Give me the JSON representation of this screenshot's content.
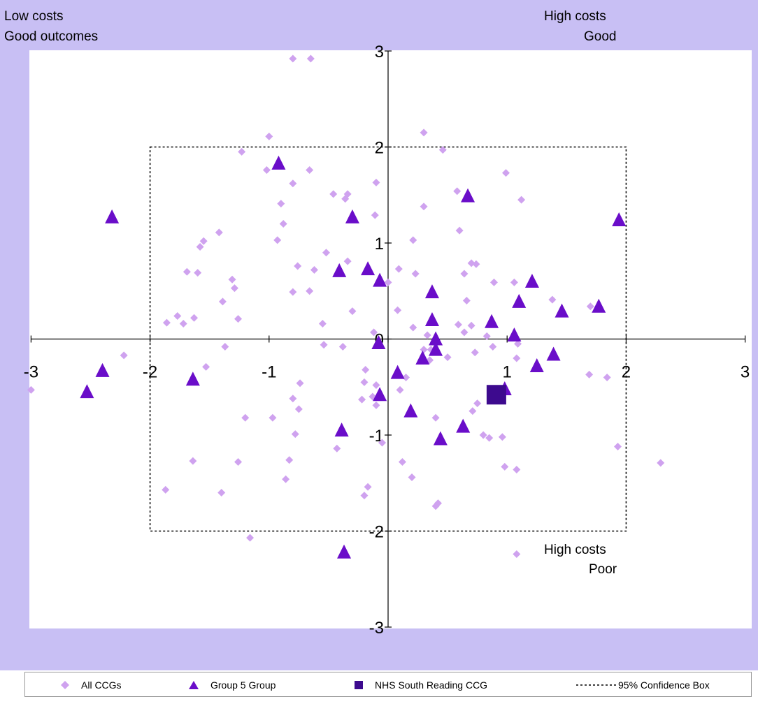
{
  "colors": {
    "background_band": "#c8bff4",
    "plot_bg": "#ffffff",
    "all_ccgs": "#cfa2ef",
    "group": "#6a0dc9",
    "highlight": "#3d0a8e",
    "axis": "#000000"
  },
  "corner_labels": {
    "top_left_1": "Low costs",
    "top_left_2": "Good outcomes",
    "top_right_1": "High costs",
    "top_right_2": "Good",
    "bottom_right_1": "High costs",
    "bottom_right_2": "Poor"
  },
  "legend": {
    "all": "All CCGs",
    "group": "Group 5 Group",
    "highlight": "NHS South Reading CCG",
    "box": "95% Confidence Box"
  },
  "chart_data": {
    "type": "scatter",
    "title": "",
    "xlabel": "",
    "ylabel": "",
    "xlim": [
      -3,
      3
    ],
    "ylim": [
      -3,
      3
    ],
    "x_ticks": [
      "-3",
      "-2",
      "-1",
      "0",
      "1",
      "2",
      "3"
    ],
    "y_ticks": [
      "-3",
      "-2",
      "-1",
      "0",
      "1",
      "2",
      "3"
    ],
    "confidence_box": {
      "x": [
        -2,
        2
      ],
      "y": [
        -2,
        2
      ]
    },
    "series": [
      {
        "name": "All CCGs",
        "marker": "diamond",
        "points": [
          [
            -0.8,
            2.92
          ],
          [
            -0.65,
            2.92
          ],
          [
            -1.0,
            2.11
          ],
          [
            0.3,
            2.15
          ],
          [
            0.46,
            1.97
          ],
          [
            -1.23,
            1.95
          ],
          [
            -1.02,
            1.76
          ],
          [
            -0.66,
            1.76
          ],
          [
            0.99,
            1.73
          ],
          [
            -0.1,
            1.63
          ],
          [
            0.58,
            1.54
          ],
          [
            -0.8,
            1.62
          ],
          [
            -0.46,
            1.51
          ],
          [
            -0.34,
            1.51
          ],
          [
            -0.36,
            1.46
          ],
          [
            1.12,
            1.45
          ],
          [
            -0.9,
            1.41
          ],
          [
            0.3,
            1.38
          ],
          [
            -0.11,
            1.29
          ],
          [
            -0.88,
            1.2
          ],
          [
            0.6,
            1.13
          ],
          [
            -1.42,
            1.11
          ],
          [
            -1.55,
            1.02
          ],
          [
            -0.93,
            1.03
          ],
          [
            0.21,
            1.03
          ],
          [
            -1.58,
            0.96
          ],
          [
            -0.52,
            0.9
          ],
          [
            -0.34,
            0.81
          ],
          [
            0.7,
            0.79
          ],
          [
            0.74,
            0.78
          ],
          [
            -0.76,
            0.76
          ],
          [
            -0.62,
            0.72
          ],
          [
            0.09,
            0.73
          ],
          [
            -1.69,
            0.7
          ],
          [
            -1.6,
            0.69
          ],
          [
            0.64,
            0.68
          ],
          [
            0.23,
            0.68
          ],
          [
            -1.31,
            0.62
          ],
          [
            0.89,
            0.59
          ],
          [
            1.06,
            0.59
          ],
          [
            -0.0,
            0.59
          ],
          [
            -1.29,
            0.53
          ],
          [
            -0.66,
            0.5
          ],
          [
            -0.8,
            0.49
          ],
          [
            1.38,
            0.41
          ],
          [
            0.66,
            0.4
          ],
          [
            -1.39,
            0.39
          ],
          [
            1.7,
            0.34
          ],
          [
            0.08,
            0.3
          ],
          [
            -0.3,
            0.29
          ],
          [
            -1.77,
            0.24
          ],
          [
            -1.63,
            0.22
          ],
          [
            -1.26,
            0.21
          ],
          [
            -1.86,
            0.17
          ],
          [
            -1.72,
            0.16
          ],
          [
            -0.55,
            0.16
          ],
          [
            0.59,
            0.15
          ],
          [
            0.7,
            0.14
          ],
          [
            0.21,
            0.12
          ],
          [
            0.64,
            0.07
          ],
          [
            -0.12,
            0.07
          ],
          [
            0.33,
            0.04
          ],
          [
            0.83,
            0.03
          ],
          [
            -0.54,
            -0.06
          ],
          [
            -1.37,
            -0.08
          ],
          [
            -0.38,
            -0.08
          ],
          [
            0.88,
            -0.08
          ],
          [
            0.3,
            -0.11
          ],
          [
            0.36,
            -0.11
          ],
          [
            0.73,
            -0.14
          ],
          [
            1.09,
            -0.05
          ],
          [
            -2.22,
            -0.17
          ],
          [
            0.5,
            -0.19
          ],
          [
            1.08,
            -0.2
          ],
          [
            0.35,
            -0.22
          ],
          [
            -1.53,
            -0.29
          ],
          [
            -0.19,
            -0.32
          ],
          [
            1.69,
            -0.37
          ],
          [
            1.84,
            -0.4
          ],
          [
            0.15,
            -0.4
          ],
          [
            -0.2,
            -0.45
          ],
          [
            -0.1,
            -0.48
          ],
          [
            -0.74,
            -0.46
          ],
          [
            0.1,
            -0.53
          ],
          [
            -3.0,
            -0.53
          ],
          [
            -0.22,
            -0.63
          ],
          [
            -0.8,
            -0.62
          ],
          [
            -0.13,
            -0.6
          ],
          [
            0.75,
            -0.67
          ],
          [
            -0.75,
            -0.73
          ],
          [
            0.71,
            -0.75
          ],
          [
            -0.1,
            -0.69
          ],
          [
            -0.97,
            -0.82
          ],
          [
            0.4,
            -0.82
          ],
          [
            -1.2,
            -0.82
          ],
          [
            -0.78,
            -0.99
          ],
          [
            0.8,
            -1.0
          ],
          [
            0.85,
            -1.03
          ],
          [
            0.96,
            -1.02
          ],
          [
            -0.05,
            -1.08
          ],
          [
            -0.43,
            -1.14
          ],
          [
            1.93,
            -1.12
          ],
          [
            0.12,
            -1.28
          ],
          [
            -1.64,
            -1.27
          ],
          [
            -1.26,
            -1.28
          ],
          [
            -0.83,
            -1.26
          ],
          [
            0.98,
            -1.33
          ],
          [
            1.08,
            -1.36
          ],
          [
            2.29,
            -1.29
          ],
          [
            0.2,
            -1.44
          ],
          [
            -0.86,
            -1.46
          ],
          [
            -0.17,
            -1.54
          ],
          [
            -1.87,
            -1.57
          ],
          [
            -1.4,
            -1.6
          ],
          [
            -0.2,
            -1.63
          ],
          [
            0.42,
            -1.71
          ],
          [
            0.4,
            -1.74
          ],
          [
            -1.16,
            -2.07
          ],
          [
            1.08,
            -2.24
          ]
        ]
      },
      {
        "name": "Group 5 Group",
        "marker": "triangle",
        "points": [
          [
            -0.92,
            1.83
          ],
          [
            0.67,
            1.49
          ],
          [
            -2.32,
            1.27
          ],
          [
            1.94,
            1.24
          ],
          [
            -0.3,
            1.27
          ],
          [
            -0.17,
            0.73
          ],
          [
            -0.41,
            0.71
          ],
          [
            -0.07,
            0.61
          ],
          [
            1.21,
            0.6
          ],
          [
            0.37,
            0.49
          ],
          [
            1.1,
            0.39
          ],
          [
            1.77,
            0.34
          ],
          [
            1.46,
            0.29
          ],
          [
            0.37,
            0.2
          ],
          [
            0.87,
            0.18
          ],
          [
            1.06,
            0.04
          ],
          [
            0.4,
            0.0
          ],
          [
            -0.08,
            -0.04
          ],
          [
            0.4,
            -0.11
          ],
          [
            1.39,
            -0.16
          ],
          [
            0.29,
            -0.2
          ],
          [
            1.25,
            -0.28
          ],
          [
            -2.4,
            -0.33
          ],
          [
            0.08,
            -0.35
          ],
          [
            -1.64,
            -0.42
          ],
          [
            0.98,
            -0.52
          ],
          [
            -2.53,
            -0.55
          ],
          [
            -0.07,
            -0.58
          ],
          [
            0.19,
            -0.75
          ],
          [
            0.63,
            -0.91
          ],
          [
            -0.39,
            -0.95
          ],
          [
            0.44,
            -1.04
          ],
          [
            -0.37,
            -2.22
          ]
        ]
      },
      {
        "name": "NHS South Reading CCG",
        "marker": "square",
        "points": [
          [
            0.91,
            -0.58
          ]
        ]
      }
    ],
    "legend_position": "bottom"
  }
}
